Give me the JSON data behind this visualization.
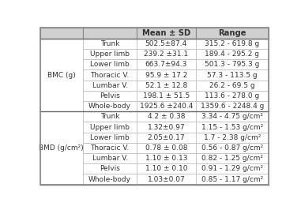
{
  "col_headers": [
    "",
    "Mean ± SD",
    "Range"
  ],
  "row_groups": [
    {
      "group_label": "BMC (g)",
      "rows": [
        [
          "Trunk",
          "502.5±87.4",
          "315.2 - 619.8 g"
        ],
        [
          "Upper limb",
          "239.2 ±31.1",
          "189.4 - 295.2 g"
        ],
        [
          "Lower limb",
          "663.7±94.3",
          "501.3 - 795.3 g"
        ],
        [
          "Thoracic V.",
          "95.9 ± 17.2",
          "57.3 - 113.5 g"
        ],
        [
          "Lumbar V.",
          "52.1 ± 12.8",
          "26.2 - 69.5 g"
        ],
        [
          "Pelvis",
          "198.1 ± 51.5",
          "113.6 - 278.0 g"
        ],
        [
          "Whole-body",
          "1925.6 ±240.4",
          "1359.6 - 2248.4 g"
        ]
      ]
    },
    {
      "group_label": "BMD (g/cm²)",
      "rows": [
        [
          "Trunk",
          "4.2 ± 0.38",
          "3.34 - 4.75 g/cm²"
        ],
        [
          "Upper limb",
          "1.32±0.97",
          "1.15 - 1.53 g/cm²"
        ],
        [
          "Lower limb",
          "2.05±0.17",
          "1.7 - 2.38 g/cm²"
        ],
        [
          "Thoracic V.",
          "0.78 ± 0.08",
          "0.56 - 0.87 g/cm²"
        ],
        [
          "Lumbar V.",
          "1.10 ± 0.13",
          "0.82 - 1.25 g/cm²"
        ],
        [
          "Pelvis",
          "1.10 ± 0.10",
          "0.91 - 1.29 g/cm²"
        ],
        [
          "Whole-body",
          "1.03±0.07",
          "0.85 - 1.17 g/cm²"
        ]
      ]
    }
  ],
  "header_bg": "#d0d0d0",
  "group_label_bg": "#ffffff",
  "row_bg": "#ffffff",
  "border_color_inner": "#bbbbbb",
  "border_color_outer": "#888888",
  "border_color_header_bottom": "#555555",
  "border_color_group_div": "#555555",
  "text_color": "#333333",
  "font_size": 6.5,
  "header_font_size": 7.2
}
